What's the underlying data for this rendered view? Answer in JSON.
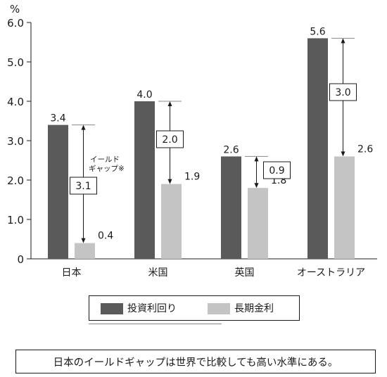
{
  "chart_data": {
    "type": "bar",
    "unit_label": "%",
    "categories": [
      "日本",
      "米国",
      "英国",
      "オーストラリア"
    ],
    "series": [
      {
        "name": "投資利回り",
        "values": [
          3.4,
          4.0,
          2.6,
          5.6
        ],
        "color": "#5a5a5a"
      },
      {
        "name": "長期金利",
        "values": [
          0.4,
          1.9,
          1.8,
          2.6
        ],
        "color": "#c4c4c4"
      }
    ],
    "value_labels": {
      "s0": [
        "3.4",
        "4.0",
        "2.6",
        "5.6"
      ],
      "s1": [
        "0.4",
        "1.9",
        "1.8",
        "2.6"
      ]
    },
    "gaps": [
      3.1,
      2.0,
      0.9,
      3.0
    ],
    "gap_labels": [
      "3.1",
      "2.0",
      "0.9",
      "3.0"
    ],
    "annotation": {
      "line1": "イールド",
      "line2": "ギャップ※"
    },
    "y_ticks": [
      "0",
      "1.0",
      "2.0",
      "3.0",
      "4.0",
      "5.0",
      "6.0"
    ],
    "ylim": [
      0,
      6
    ],
    "grid": false,
    "legend_position": "bottom"
  },
  "caption": "日本のイールドギャップは世界で比較しても高い水準にある。"
}
